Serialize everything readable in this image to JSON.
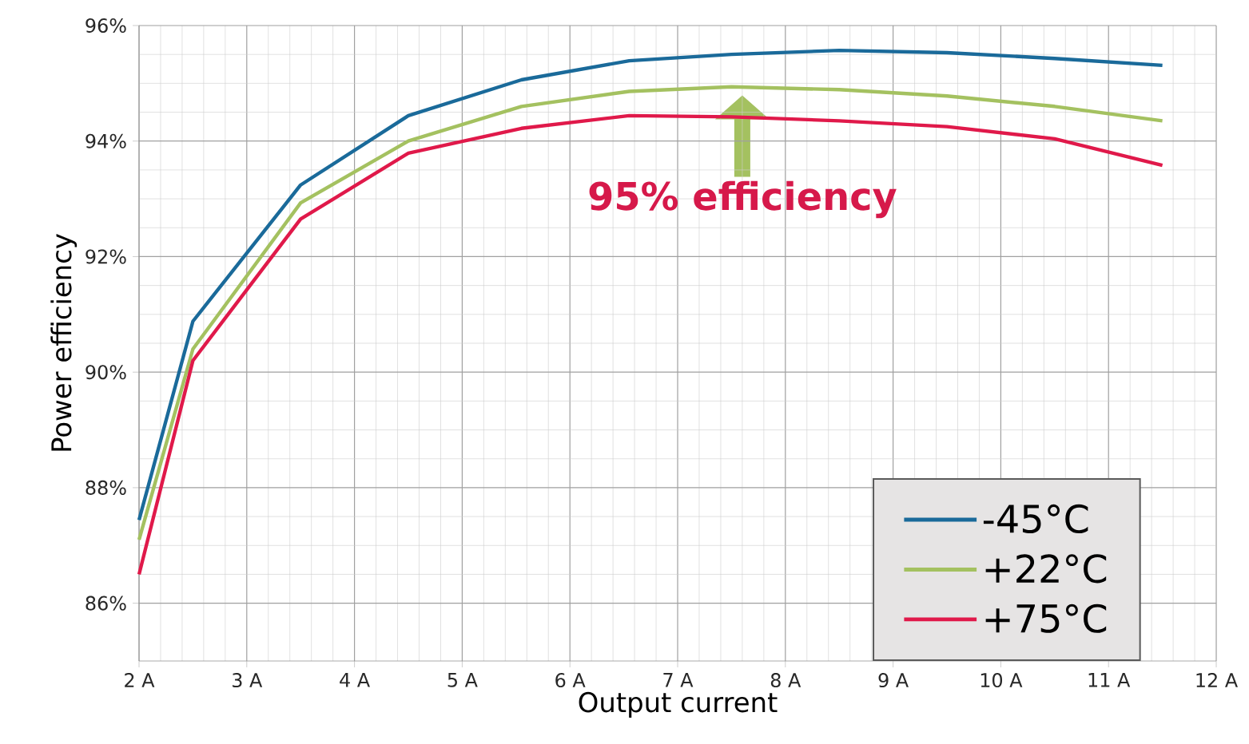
{
  "chart_data": {
    "type": "line",
    "xlabel": "Output current",
    "ylabel": "Power efficiency",
    "x": [
      2,
      2.5,
      3.5,
      4.5,
      5.55,
      6.55,
      7.5,
      8.5,
      9.5,
      10.5,
      11.5
    ],
    "series": [
      {
        "name": "-45°C",
        "color": "#1a6a9a",
        "values": [
          87.44,
          90.88,
          93.24,
          94.44,
          95.06,
          95.39,
          95.5,
          95.57,
          95.53,
          95.43,
          95.31
        ]
      },
      {
        "name": "+22°C",
        "color": "#a4c160",
        "values": [
          87.1,
          90.4,
          92.93,
          94.0,
          94.6,
          94.86,
          94.94,
          94.89,
          94.78,
          94.6,
          94.35
        ]
      },
      {
        "name": "+75°C",
        "color": "#e0194a",
        "values": [
          86.5,
          90.2,
          92.65,
          93.79,
          94.22,
          94.44,
          94.42,
          94.35,
          94.25,
          94.04,
          93.58
        ]
      }
    ],
    "xlim": [
      2,
      12
    ],
    "ylim": [
      85,
      96
    ],
    "xticks": [
      {
        "value": 2,
        "label": "2 A"
      },
      {
        "value": 3,
        "label": "3 A"
      },
      {
        "value": 4,
        "label": "4 A"
      },
      {
        "value": 5,
        "label": "5 A"
      },
      {
        "value": 6,
        "label": "6 A"
      },
      {
        "value": 7,
        "label": "7 A"
      },
      {
        "value": 8,
        "label": "8 A"
      },
      {
        "value": 9,
        "label": "9 A"
      },
      {
        "value": 10,
        "label": "10 A"
      },
      {
        "value": 11,
        "label": "11 A"
      },
      {
        "value": 12,
        "label": "12 A"
      }
    ],
    "yticks": [
      {
        "value": 86,
        "label": "86%"
      },
      {
        "value": 88,
        "label": "88%"
      },
      {
        "value": 90,
        "label": "90%"
      },
      {
        "value": 92,
        "label": "92%"
      },
      {
        "value": 94,
        "label": "94%"
      },
      {
        "value": 96,
        "label": "96%"
      }
    ],
    "annotations": [
      {
        "text": "95% efficiency",
        "x": 7.6,
        "y": 94.9
      }
    ],
    "grid": true,
    "legend": "bottom right",
    "marker": "none",
    "line_style": "solid"
  }
}
